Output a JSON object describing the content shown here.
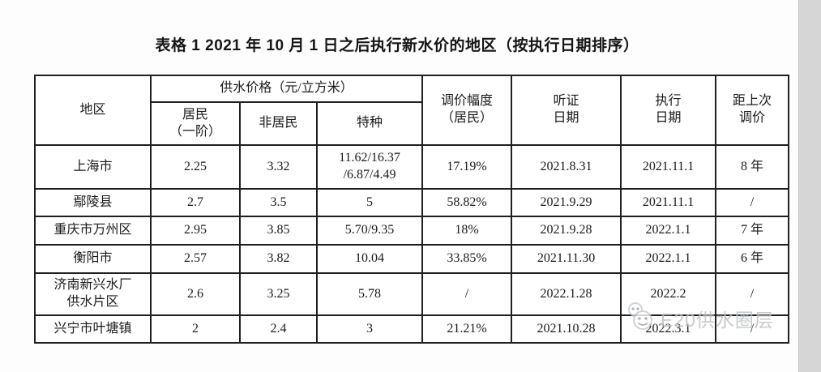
{
  "title": "表格 1 2021 年 10 月 1 日之后执行新水价的地区（按执行日期排序）",
  "table": {
    "header": {
      "region": "地区",
      "price_group": "供水价格（元/立方米）",
      "resident_lines": [
        "居民",
        "（一阶）"
      ],
      "nonresident": "非居民",
      "special": "特种",
      "adjustment_lines": [
        "调价幅度",
        "（居民）"
      ],
      "hearing_lines": [
        "听证",
        "日期"
      ],
      "execution_lines": [
        "执行",
        "日期"
      ],
      "since_lines": [
        "距上次",
        "调价"
      ]
    },
    "rows": [
      {
        "cells": [
          [
            "上海市"
          ],
          [
            "2.25"
          ],
          [
            "3.32"
          ],
          [
            "11.62/16.37",
            "/6.87/4.49"
          ],
          [
            "17.19%"
          ],
          [
            "2021.8.31"
          ],
          [
            "2021.11.1"
          ],
          [
            "8 年"
          ]
        ]
      },
      {
        "cells": [
          [
            "鄢陵县"
          ],
          [
            "2.7"
          ],
          [
            "3.5"
          ],
          [
            "5"
          ],
          [
            "58.82%"
          ],
          [
            "2021.9.29"
          ],
          [
            "2021.11.1"
          ],
          [
            "/"
          ]
        ]
      },
      {
        "cells": [
          [
            "重庆市万州区"
          ],
          [
            "2.95"
          ],
          [
            "3.85"
          ],
          [
            "5.70/9.35"
          ],
          [
            "18%"
          ],
          [
            "2021.9.28"
          ],
          [
            "2022.1.1"
          ],
          [
            "7 年"
          ]
        ]
      },
      {
        "cells": [
          [
            "衡阳市"
          ],
          [
            "2.57"
          ],
          [
            "3.82"
          ],
          [
            "10.04"
          ],
          [
            "33.85%"
          ],
          [
            "2021.11.30"
          ],
          [
            "2022.1.1"
          ],
          [
            "6 年"
          ]
        ]
      },
      {
        "cells": [
          [
            "济南新兴水厂",
            "供水片区"
          ],
          [
            "2.6"
          ],
          [
            "3.25"
          ],
          [
            "5.78"
          ],
          [
            "/"
          ],
          [
            "2022.1.28"
          ],
          [
            "2022.2"
          ],
          [
            "/"
          ]
        ]
      },
      {
        "cells": [
          [
            "兴宁市叶塘镇"
          ],
          [
            "2"
          ],
          [
            "2.4"
          ],
          [
            "3"
          ],
          [
            "21.21%"
          ],
          [
            "2021.10.28"
          ],
          [
            "2022.3.1"
          ],
          [
            "/"
          ]
        ]
      }
    ]
  },
  "watermark": {
    "text": "E20供水圈层",
    "icon": "smiley-faces-icon",
    "color": "#b9bdc1"
  }
}
